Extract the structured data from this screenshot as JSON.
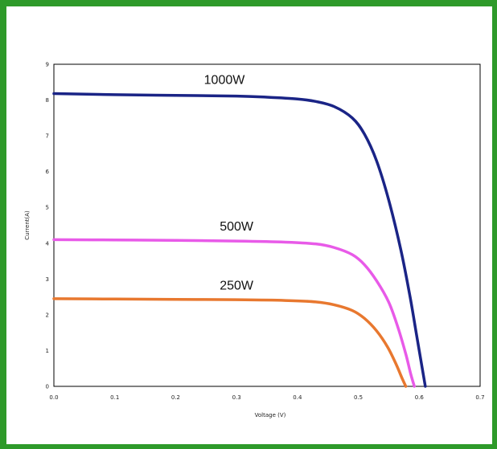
{
  "chart_data": {
    "type": "line",
    "title": "",
    "xlabel": "Voltage (V)",
    "ylabel": "Current(A)",
    "xlim": [
      0.0,
      0.7
    ],
    "ylim": [
      0,
      9
    ],
    "x_ticks": [
      "0.0",
      "0.1",
      "0.2",
      "0.3",
      "0.4",
      "0.5",
      "0.6",
      "0.7"
    ],
    "y_ticks": [
      "0",
      "1",
      "2",
      "3",
      "4",
      "5",
      "6",
      "7",
      "8",
      "9"
    ],
    "grid": false,
    "legend": "none (inline labels above curves)",
    "series": [
      {
        "name": "1000W",
        "color": "#1a2486",
        "points": [
          [
            0.0,
            8.18
          ],
          [
            0.1,
            8.15
          ],
          [
            0.2,
            8.13
          ],
          [
            0.3,
            8.11
          ],
          [
            0.35,
            8.08
          ],
          [
            0.4,
            8.03
          ],
          [
            0.43,
            7.96
          ],
          [
            0.46,
            7.82
          ],
          [
            0.49,
            7.5
          ],
          [
            0.51,
            7.05
          ],
          [
            0.53,
            6.3
          ],
          [
            0.55,
            5.2
          ],
          [
            0.57,
            3.8
          ],
          [
            0.585,
            2.5
          ],
          [
            0.595,
            1.5
          ],
          [
            0.603,
            0.7
          ],
          [
            0.61,
            0.0
          ]
        ]
      },
      {
        "name": "500W",
        "color": "#e85ae8",
        "points": [
          [
            0.0,
            4.1
          ],
          [
            0.1,
            4.09
          ],
          [
            0.2,
            4.08
          ],
          [
            0.3,
            4.06
          ],
          [
            0.38,
            4.03
          ],
          [
            0.43,
            3.98
          ],
          [
            0.46,
            3.88
          ],
          [
            0.49,
            3.68
          ],
          [
            0.51,
            3.4
          ],
          [
            0.53,
            2.95
          ],
          [
            0.55,
            2.35
          ],
          [
            0.565,
            1.65
          ],
          [
            0.578,
            0.9
          ],
          [
            0.586,
            0.35
          ],
          [
            0.592,
            0.0
          ]
        ]
      },
      {
        "name": "250W",
        "color": "#e8782f",
        "points": [
          [
            0.0,
            2.45
          ],
          [
            0.1,
            2.44
          ],
          [
            0.2,
            2.43
          ],
          [
            0.3,
            2.42
          ],
          [
            0.38,
            2.4
          ],
          [
            0.43,
            2.36
          ],
          [
            0.46,
            2.28
          ],
          [
            0.49,
            2.12
          ],
          [
            0.51,
            1.9
          ],
          [
            0.53,
            1.55
          ],
          [
            0.548,
            1.1
          ],
          [
            0.562,
            0.62
          ],
          [
            0.572,
            0.22
          ],
          [
            0.578,
            0.0
          ]
        ]
      }
    ]
  }
}
